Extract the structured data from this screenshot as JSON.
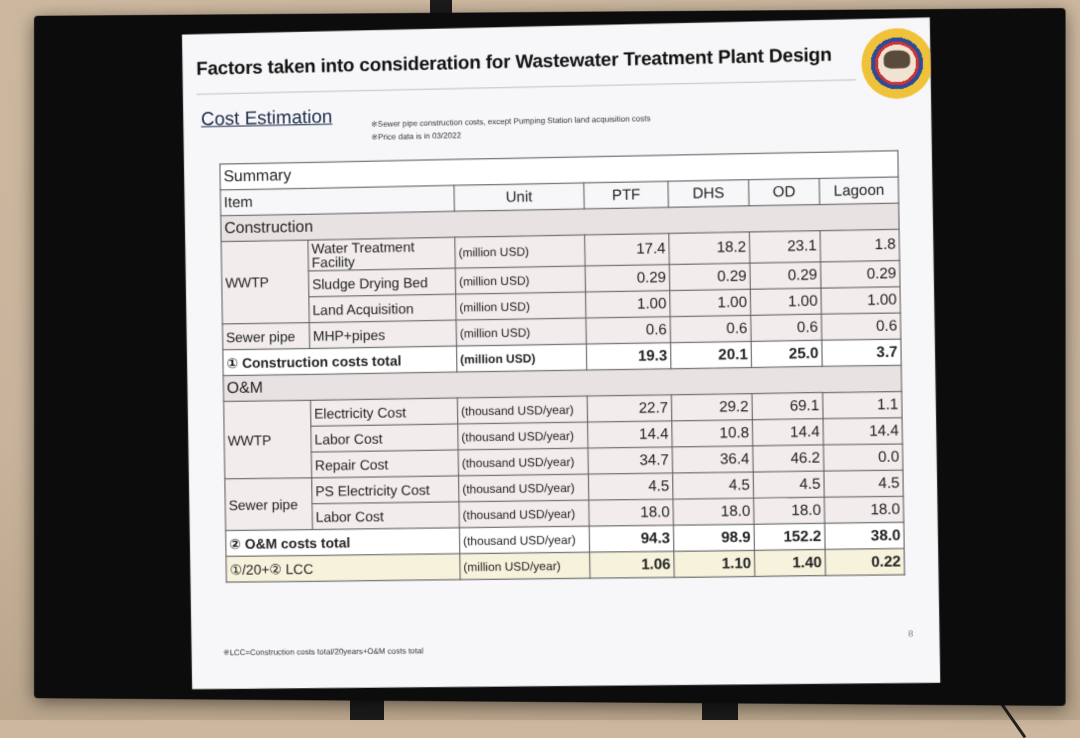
{
  "slide": {
    "title": "Factors taken into consideration for Wastewater Treatment Plant Design",
    "section_title": "Cost Estimation",
    "notes": [
      "※Sewer pipe construction costs, except Pumping Station land acquisition costs",
      "※Price data is in 03/2022"
    ],
    "footnote": "※LCC=Construction costs total/20years+O&M costs total",
    "page_number": "8"
  },
  "table": {
    "summary_label": "Summary",
    "headers": [
      "Item",
      "Unit",
      "PTF",
      "DHS",
      "OD",
      "Lagoon"
    ],
    "construction_label": "Construction",
    "om_label": "O&M",
    "wwtp_label": "WWTP",
    "sewer_label": "Sewer pipe",
    "construction_rows": [
      {
        "name": "Water Treatment Facility",
        "unit": "(million USD)",
        "values": [
          "17.4",
          "18.2",
          "23.1",
          "1.8"
        ]
      },
      {
        "name": "Sludge Drying Bed",
        "unit": "(million USD)",
        "values": [
          "0.29",
          "0.29",
          "0.29",
          "0.29"
        ]
      },
      {
        "name": "Land Acquisition",
        "unit": "(million USD)",
        "values": [
          "1.00",
          "1.00",
          "1.00",
          "1.00"
        ]
      },
      {
        "name": "MHP+pipes",
        "unit": "(million USD)",
        "values": [
          "0.6",
          "0.6",
          "0.6",
          "0.6"
        ]
      }
    ],
    "construction_total": {
      "label": "① Construction costs total",
      "unit": "(million USD)",
      "values": [
        "19.3",
        "20.1",
        "25.0",
        "3.7"
      ]
    },
    "om_rows": [
      {
        "name": "Electricity Cost",
        "unit": "(thousand USD/year)",
        "values": [
          "22.7",
          "29.2",
          "69.1",
          "1.1"
        ]
      },
      {
        "name": "Labor Cost",
        "unit": "(thousand USD/year)",
        "values": [
          "14.4",
          "10.8",
          "14.4",
          "14.4"
        ]
      },
      {
        "name": "Repair Cost",
        "unit": "(thousand USD/year)",
        "values": [
          "34.7",
          "36.4",
          "46.2",
          "0.0"
        ]
      },
      {
        "name": "PS Electricity Cost",
        "unit": "(thousand USD/year)",
        "values": [
          "4.5",
          "4.5",
          "4.5",
          "4.5"
        ]
      },
      {
        "name": "Labor Cost",
        "unit": "(thousand USD/year)",
        "values": [
          "18.0",
          "18.0",
          "18.0",
          "18.0"
        ]
      }
    ],
    "om_total": {
      "label": "② O&M costs total",
      "unit": "(thousand USD/year)",
      "values": [
        "94.3",
        "98.9",
        "152.2",
        "38.0"
      ]
    },
    "lcc": {
      "label": "①/20+② LCC",
      "unit": "(million USD/year)",
      "values": [
        "1.06",
        "1.10",
        "1.40",
        "0.22"
      ]
    }
  }
}
